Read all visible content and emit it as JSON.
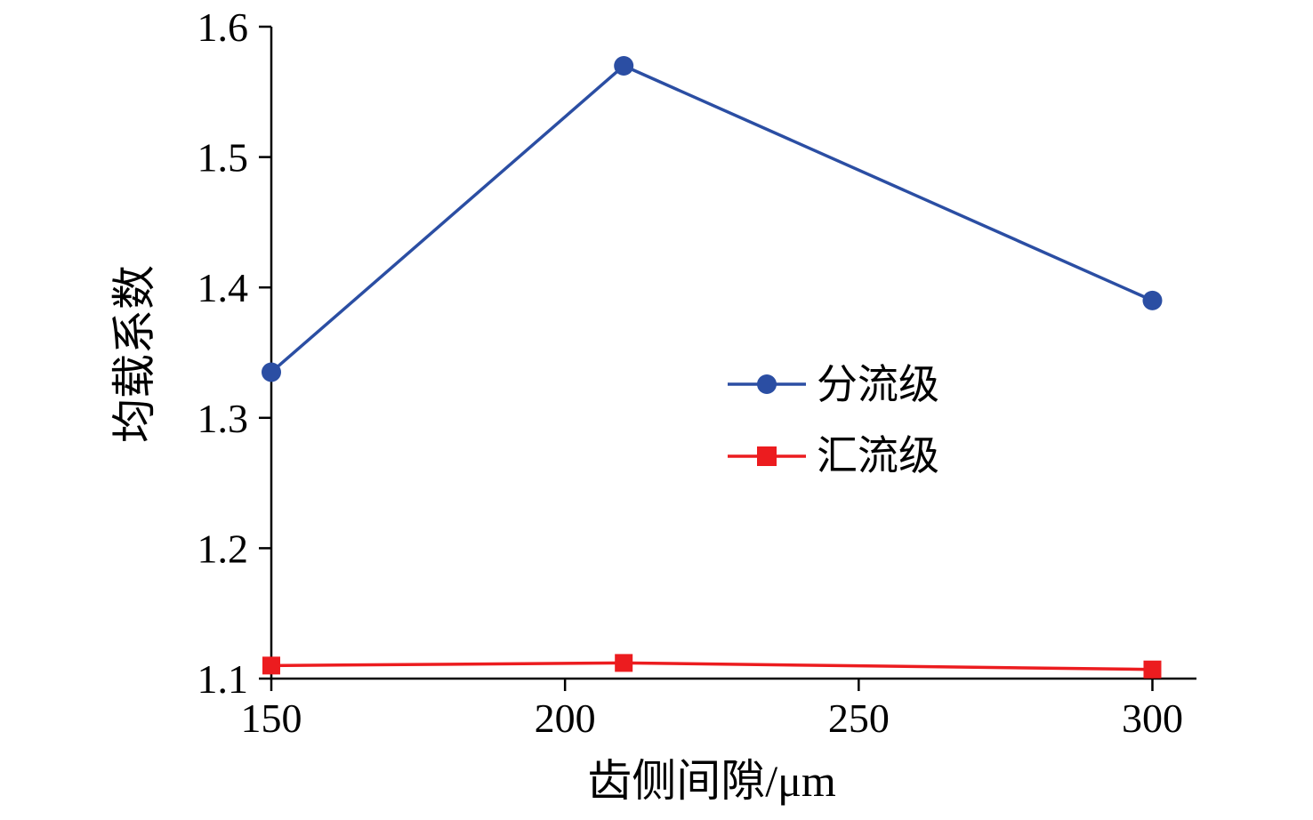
{
  "chart_data": {
    "type": "line",
    "title": "",
    "xlabel": "齿侧间隙/μm",
    "ylabel": "均载系数",
    "x": [
      150,
      210,
      300
    ],
    "series": [
      {
        "name": "分流级",
        "values": [
          1.335,
          1.57,
          1.39
        ],
        "color": "#2b4ea3",
        "marker": "circle"
      },
      {
        "name": "汇流级",
        "values": [
          1.11,
          1.112,
          1.107
        ],
        "color": "#ec1c1f",
        "marker": "square"
      }
    ],
    "xlim": [
      150,
      307.5
    ],
    "ylim": [
      1.1,
      1.6
    ],
    "xticks": [
      150,
      200,
      250,
      300
    ],
    "yticks": [
      1.1,
      1.2,
      1.3,
      1.4,
      1.5,
      1.6
    ],
    "grid": false,
    "legend_position": "center-right"
  }
}
